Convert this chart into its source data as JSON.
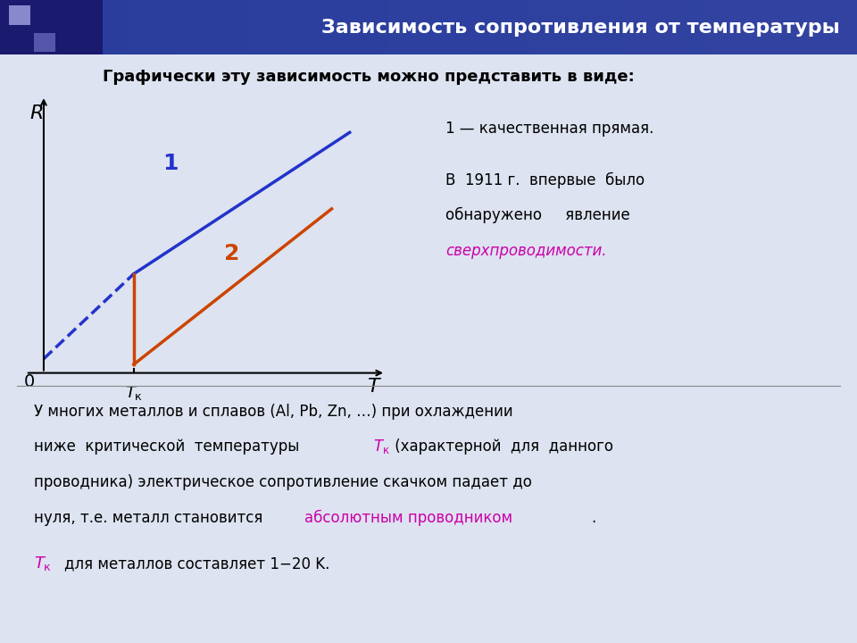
{
  "title": "Зависимость сопротивления от температуры",
  "bg_color": "#dde3f0",
  "header_color_left": "#3a3a8c",
  "header_color_right": "#5a6ab0",
  "header_text_color": "#ffffff",
  "subtitle": "Графически эту зависимость можно представить в виде:",
  "line1_color": "#2233cc",
  "line2_color": "#cc4400",
  "line1_label": "1",
  "line2_label": "2",
  "axis_label_R": "R",
  "axis_label_T": "T",
  "axis_label_Tk": "T",
  "origin_label": "0",
  "Tk_label": "Tк",
  "right_text1": "1 — качественная прямая.",
  "right_text2": "В  1911 г.  впервые  было\nобнаружено     явление",
  "right_text_highlight": "сверхпроводимости.",
  "bottom_text1": "У многих металлов и сплавов (Al, Pb, Zn, …) при охлаждении",
  "bottom_text2": "ниже  критической  температуры",
  "bottom_text3": "(характерной для данного",
  "bottom_text4": "проводника) электрическое сопротивление скачком падает до",
  "bottom_text5": "нуля, т.е. металл становится",
  "bottom_text5_highlight": "абсолютным проводником",
  "bottom_text5_end": ".",
  "bottom_text6_italic_color": "#cc0099",
  "bottom_text6": "для металлов составляет 1−20 K.",
  "highlight_color": "#cc00aa",
  "dark_blue": "#1a1acc"
}
